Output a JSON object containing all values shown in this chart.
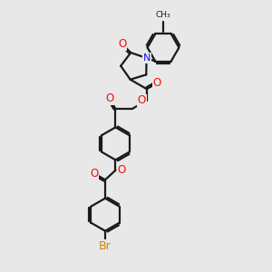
{
  "bg_color": "#e8e8e8",
  "bond_color": "#1a1a1a",
  "oxygen_color": "#ee1111",
  "nitrogen_color": "#1111ee",
  "bromine_color": "#cc8800",
  "bond_width": 1.6,
  "figsize": [
    3.0,
    3.0
  ],
  "dpi": 100,
  "xlim": [
    0,
    10
  ],
  "ylim": [
    0,
    10
  ]
}
